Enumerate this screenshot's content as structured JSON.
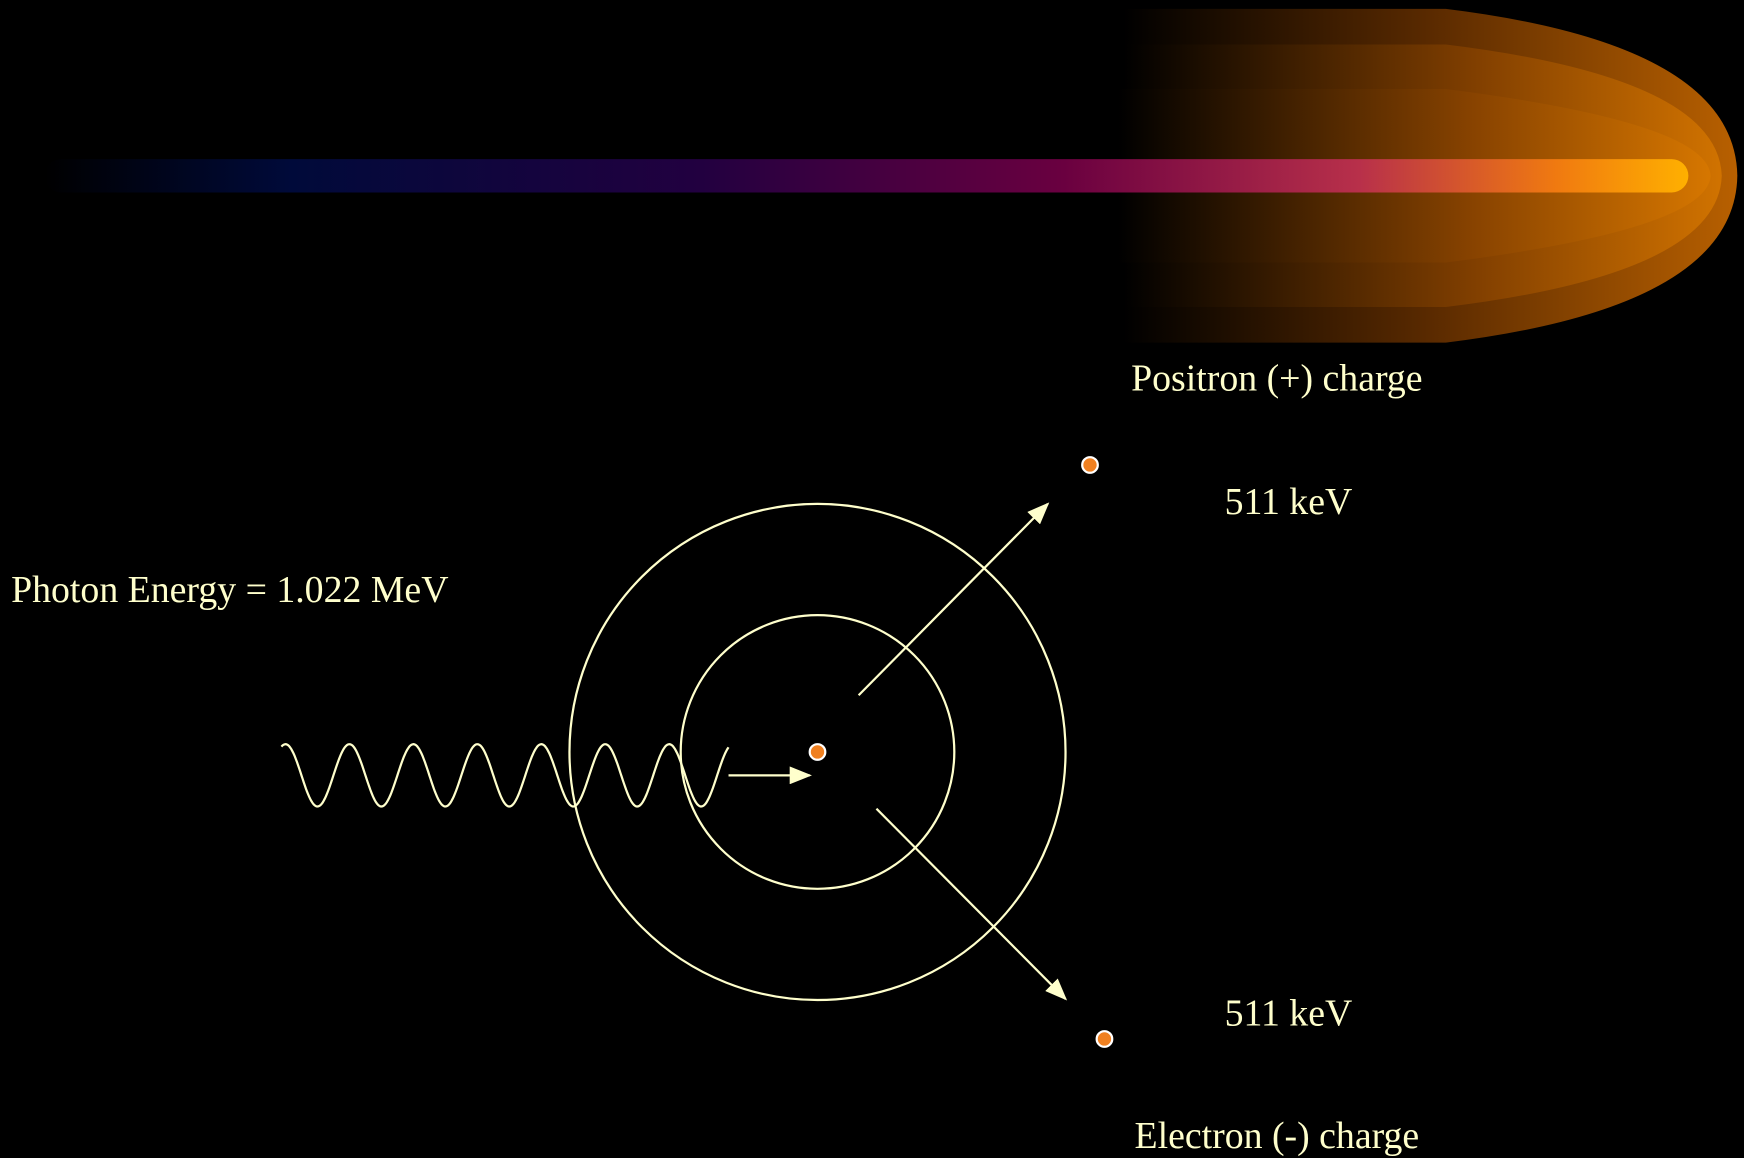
{
  "labels": {
    "positron": "Positron (+) charge",
    "energy_top": "511 keV",
    "photon_energy": "Photon Energy = 1.022 MeV",
    "energy_bottom": "511 keV",
    "electron": "Electron (-) charge"
  }
}
